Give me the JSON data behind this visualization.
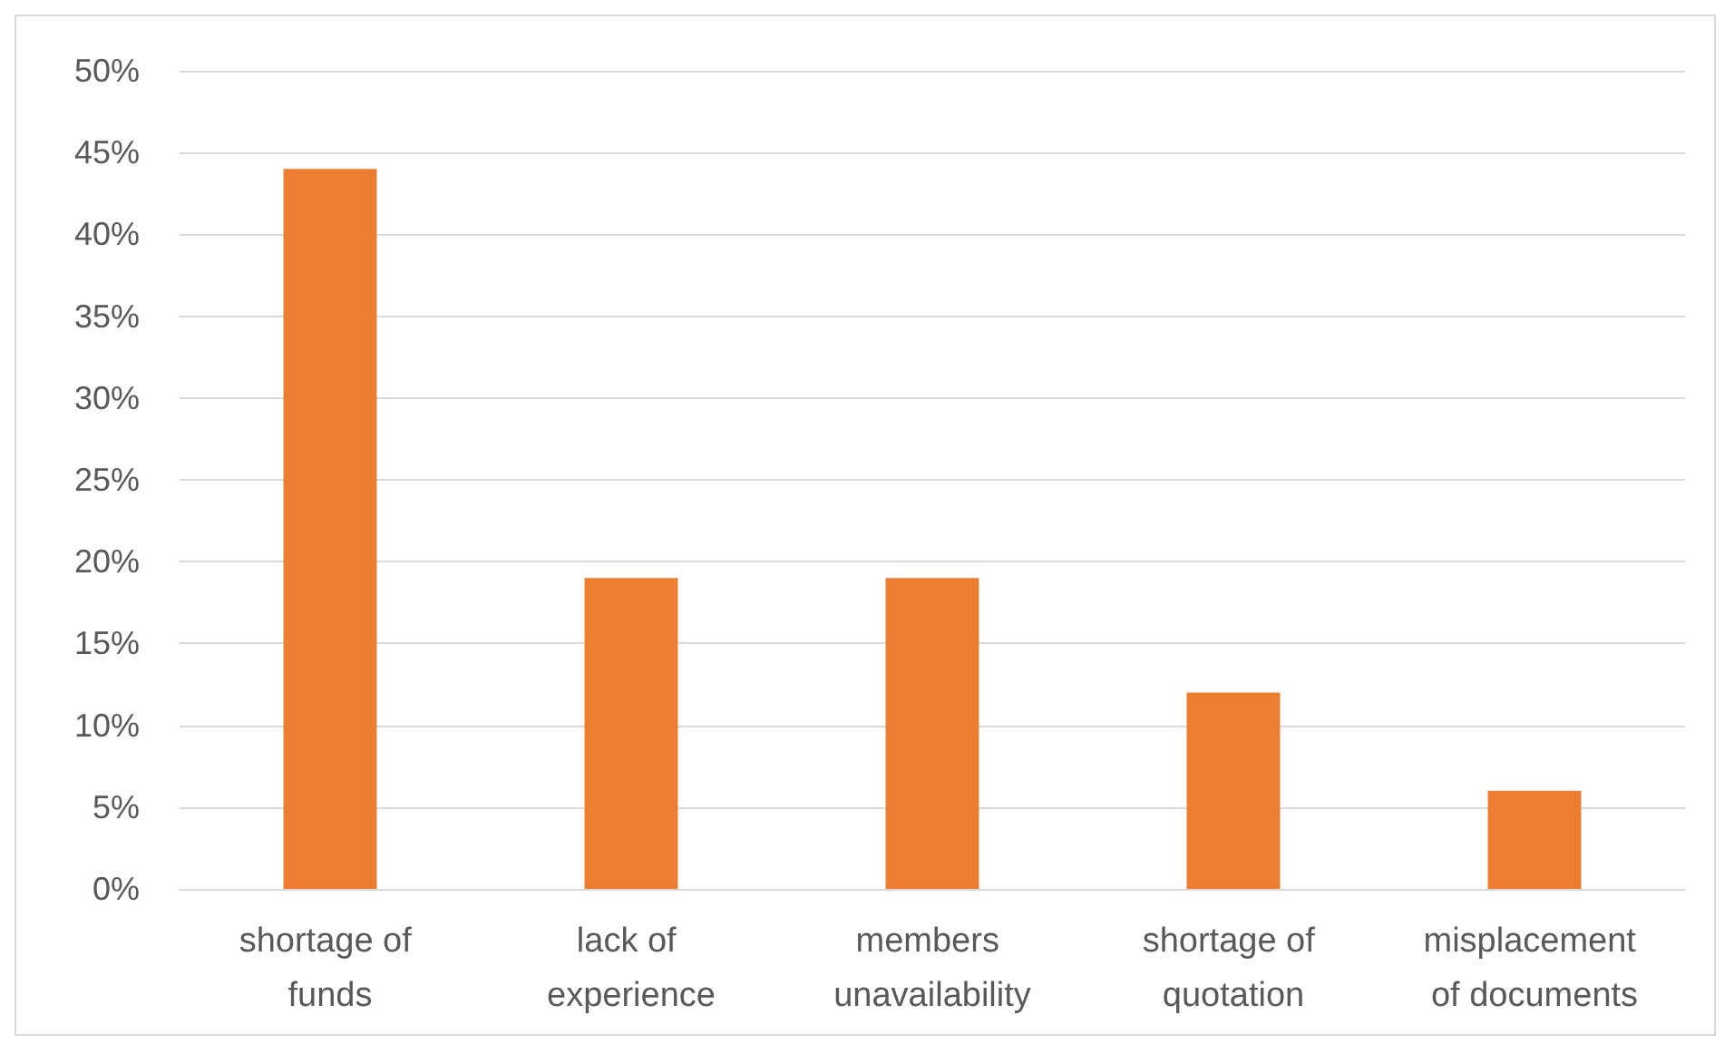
{
  "chart_data": {
    "type": "bar",
    "categories": [
      "shortage of funds",
      "lack of experience",
      "members unavailability",
      "shortage of quotation",
      "misplacement of documents"
    ],
    "values": [
      44,
      19,
      19,
      12,
      6
    ],
    "color": "#ed7d31",
    "ylim": [
      0,
      50
    ],
    "yticks": [
      {
        "value": 0,
        "label": "0%"
      },
      {
        "value": 5,
        "label": "5%"
      },
      {
        "value": 10,
        "label": "10%"
      },
      {
        "value": 15,
        "label": "15%"
      },
      {
        "value": 20,
        "label": "20%"
      },
      {
        "value": 25,
        "label": "25%"
      },
      {
        "value": 30,
        "label": "30%"
      },
      {
        "value": 35,
        "label": "35%"
      },
      {
        "value": 40,
        "label": "40%"
      },
      {
        "value": 45,
        "label": "45%"
      },
      {
        "value": 50,
        "label": "50%"
      }
    ],
    "grid": "y"
  }
}
